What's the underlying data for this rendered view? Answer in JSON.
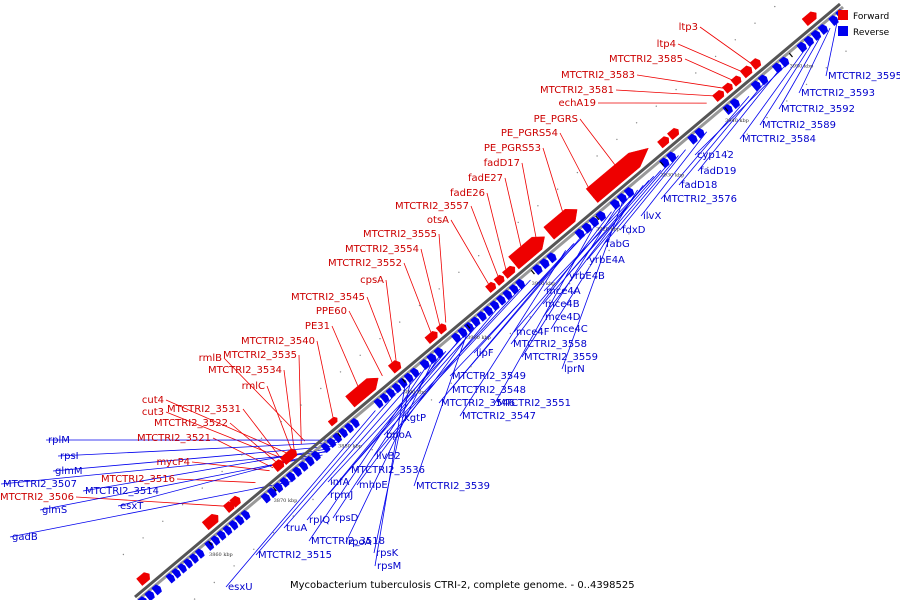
{
  "caption": "Mycobacterium tuberculosis CTRI-2, complete genome. - 0..4398525",
  "legend": {
    "forward_label": "Forward",
    "reverse_label": "Reverse",
    "forward_color": "#ee0000",
    "reverse_color": "#0000ee"
  },
  "ticks": [
    "3860 kbp",
    "3870 kbp",
    "3880 kbp",
    "3890 kbp",
    "3900 kbp",
    "3910 kbp",
    "3920 kbp",
    "3930 kbp",
    "3940 kbp",
    "3950 kbp"
  ],
  "forward_genes": [
    "ltp3",
    "ltp4",
    "MTCTRI2_3585",
    "MTCTRI2_3583",
    "MTCTRI2_3581",
    "echA19",
    "PE_PGRS",
    "PE_PGRS54",
    "PE_PGRS53",
    "fadD17",
    "fadE27",
    "fadE26",
    "MTCTRI2_3557",
    "otsA",
    "MTCTRI2_3555",
    "MTCTRI2_3554",
    "MTCTRI2_3552",
    "cpsA",
    "MTCTRI2_3545",
    "PPE60",
    "PE31",
    "MTCTRI2_3540",
    "rmlB",
    "MTCTRI2_3535",
    "MTCTRI2_3534",
    "rmlC",
    "cut4",
    "cut3",
    "MTCTRI2_3531",
    "MTCTRI2_3522",
    "MTCTRI2_3521",
    "mycP4",
    "MTCTRI2_3516",
    "MTCTRI2_3506"
  ],
  "reverse_genes": [
    "MTCTRI2_3595",
    "MTCTRI2_3593",
    "MTCTRI2_3592",
    "MTCTRI2_3589",
    "MTCTRI2_3584",
    "cyp142",
    "fadD19",
    "fadD18",
    "MTCTRI2_3576",
    "ilvX",
    "fdxD",
    "fabG",
    "yrbE4A",
    "yrbE4B",
    "mce4A",
    "mce4B",
    "mce4D",
    "mce4C",
    "mce4F",
    "lprN",
    "MTCTRI2_3559",
    "MTCTRI2_3558",
    "lipF",
    "MTCTRI2_3551",
    "MTCTRI2_3549",
    "MTCTRI2_3548",
    "MTCTRI2_3546",
    "MTCTRI2_3547",
    "kgtP",
    "bpoA",
    "ilvB2",
    "MTCTRI2_3536",
    "mhpE",
    "MTCTRI2_3539",
    "infA",
    "rpmJ",
    "rplQ",
    "rpsD",
    "rpoA",
    "MTCTRI2_3518",
    "truA",
    "rpsK",
    "rpsM",
    "MTCTRI2_3515",
    "esxU",
    "rplM",
    "rpsI",
    "glmM",
    "MTCTRI2_3507",
    "MTCTRI2_3514",
    "esxT",
    "glmS",
    "gadB"
  ]
}
